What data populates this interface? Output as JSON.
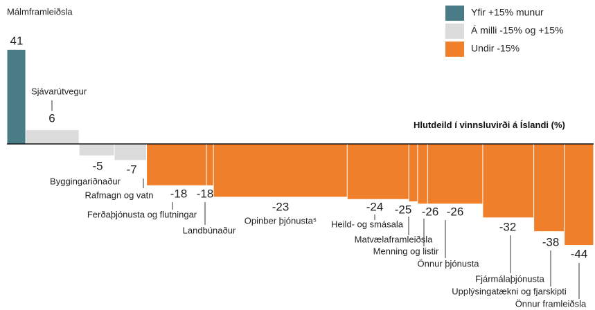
{
  "chart_data": {
    "type": "bar",
    "categories": [
      "Málmframleiðsla",
      "Sjávarútvegur",
      "Byggingariðnaður",
      "Rafmagn og vatn",
      "Ferðaþjónusta og flutningar",
      "Landbúnaður",
      "Opinber þjónusta⁵",
      "Heild- og smásala",
      "Matvælaframleiðsla",
      "Menning og listir",
      "Önnur þjónusta",
      "Fjármálaþjónusta",
      "Upplýsingatækni og fjarskipti",
      "Önnur framleiðsla"
    ],
    "values": [
      41,
      6,
      -5,
      -7,
      -18,
      -18,
      -23,
      -24,
      -25,
      -26,
      -26,
      -32,
      -38,
      -44
    ],
    "shares": [
      3.2,
      9.1,
      6.0,
      5.5,
      10.2,
      1.2,
      22.8,
      10.5,
      1.5,
      1.7,
      9.4,
      8.7,
      5.2,
      5.0
    ],
    "colors": [
      "#4a7c87",
      "#dcdcdc",
      "#dcdcdc",
      "#dcdcdc",
      "#f07f2c",
      "#f07f2c",
      "#f07f2c",
      "#f07f2c",
      "#f07f2c",
      "#f07f2c",
      "#f07f2c",
      "#f07f2c",
      "#f07f2c",
      "#f07f2c"
    ],
    "xlabel": "Hlutdeild í vinnsluvirði á Íslandi (%)",
    "xlim": [
      0,
      100
    ],
    "ylim": [
      -50,
      50
    ],
    "legend": [
      {
        "name": "Yfir +15% munur",
        "color": "#4a7c87"
      },
      {
        "name": "Á milli -15% og +15%",
        "color": "#dcdcdc"
      },
      {
        "name": "Undir -15%",
        "color": "#f07f2c"
      }
    ]
  }
}
